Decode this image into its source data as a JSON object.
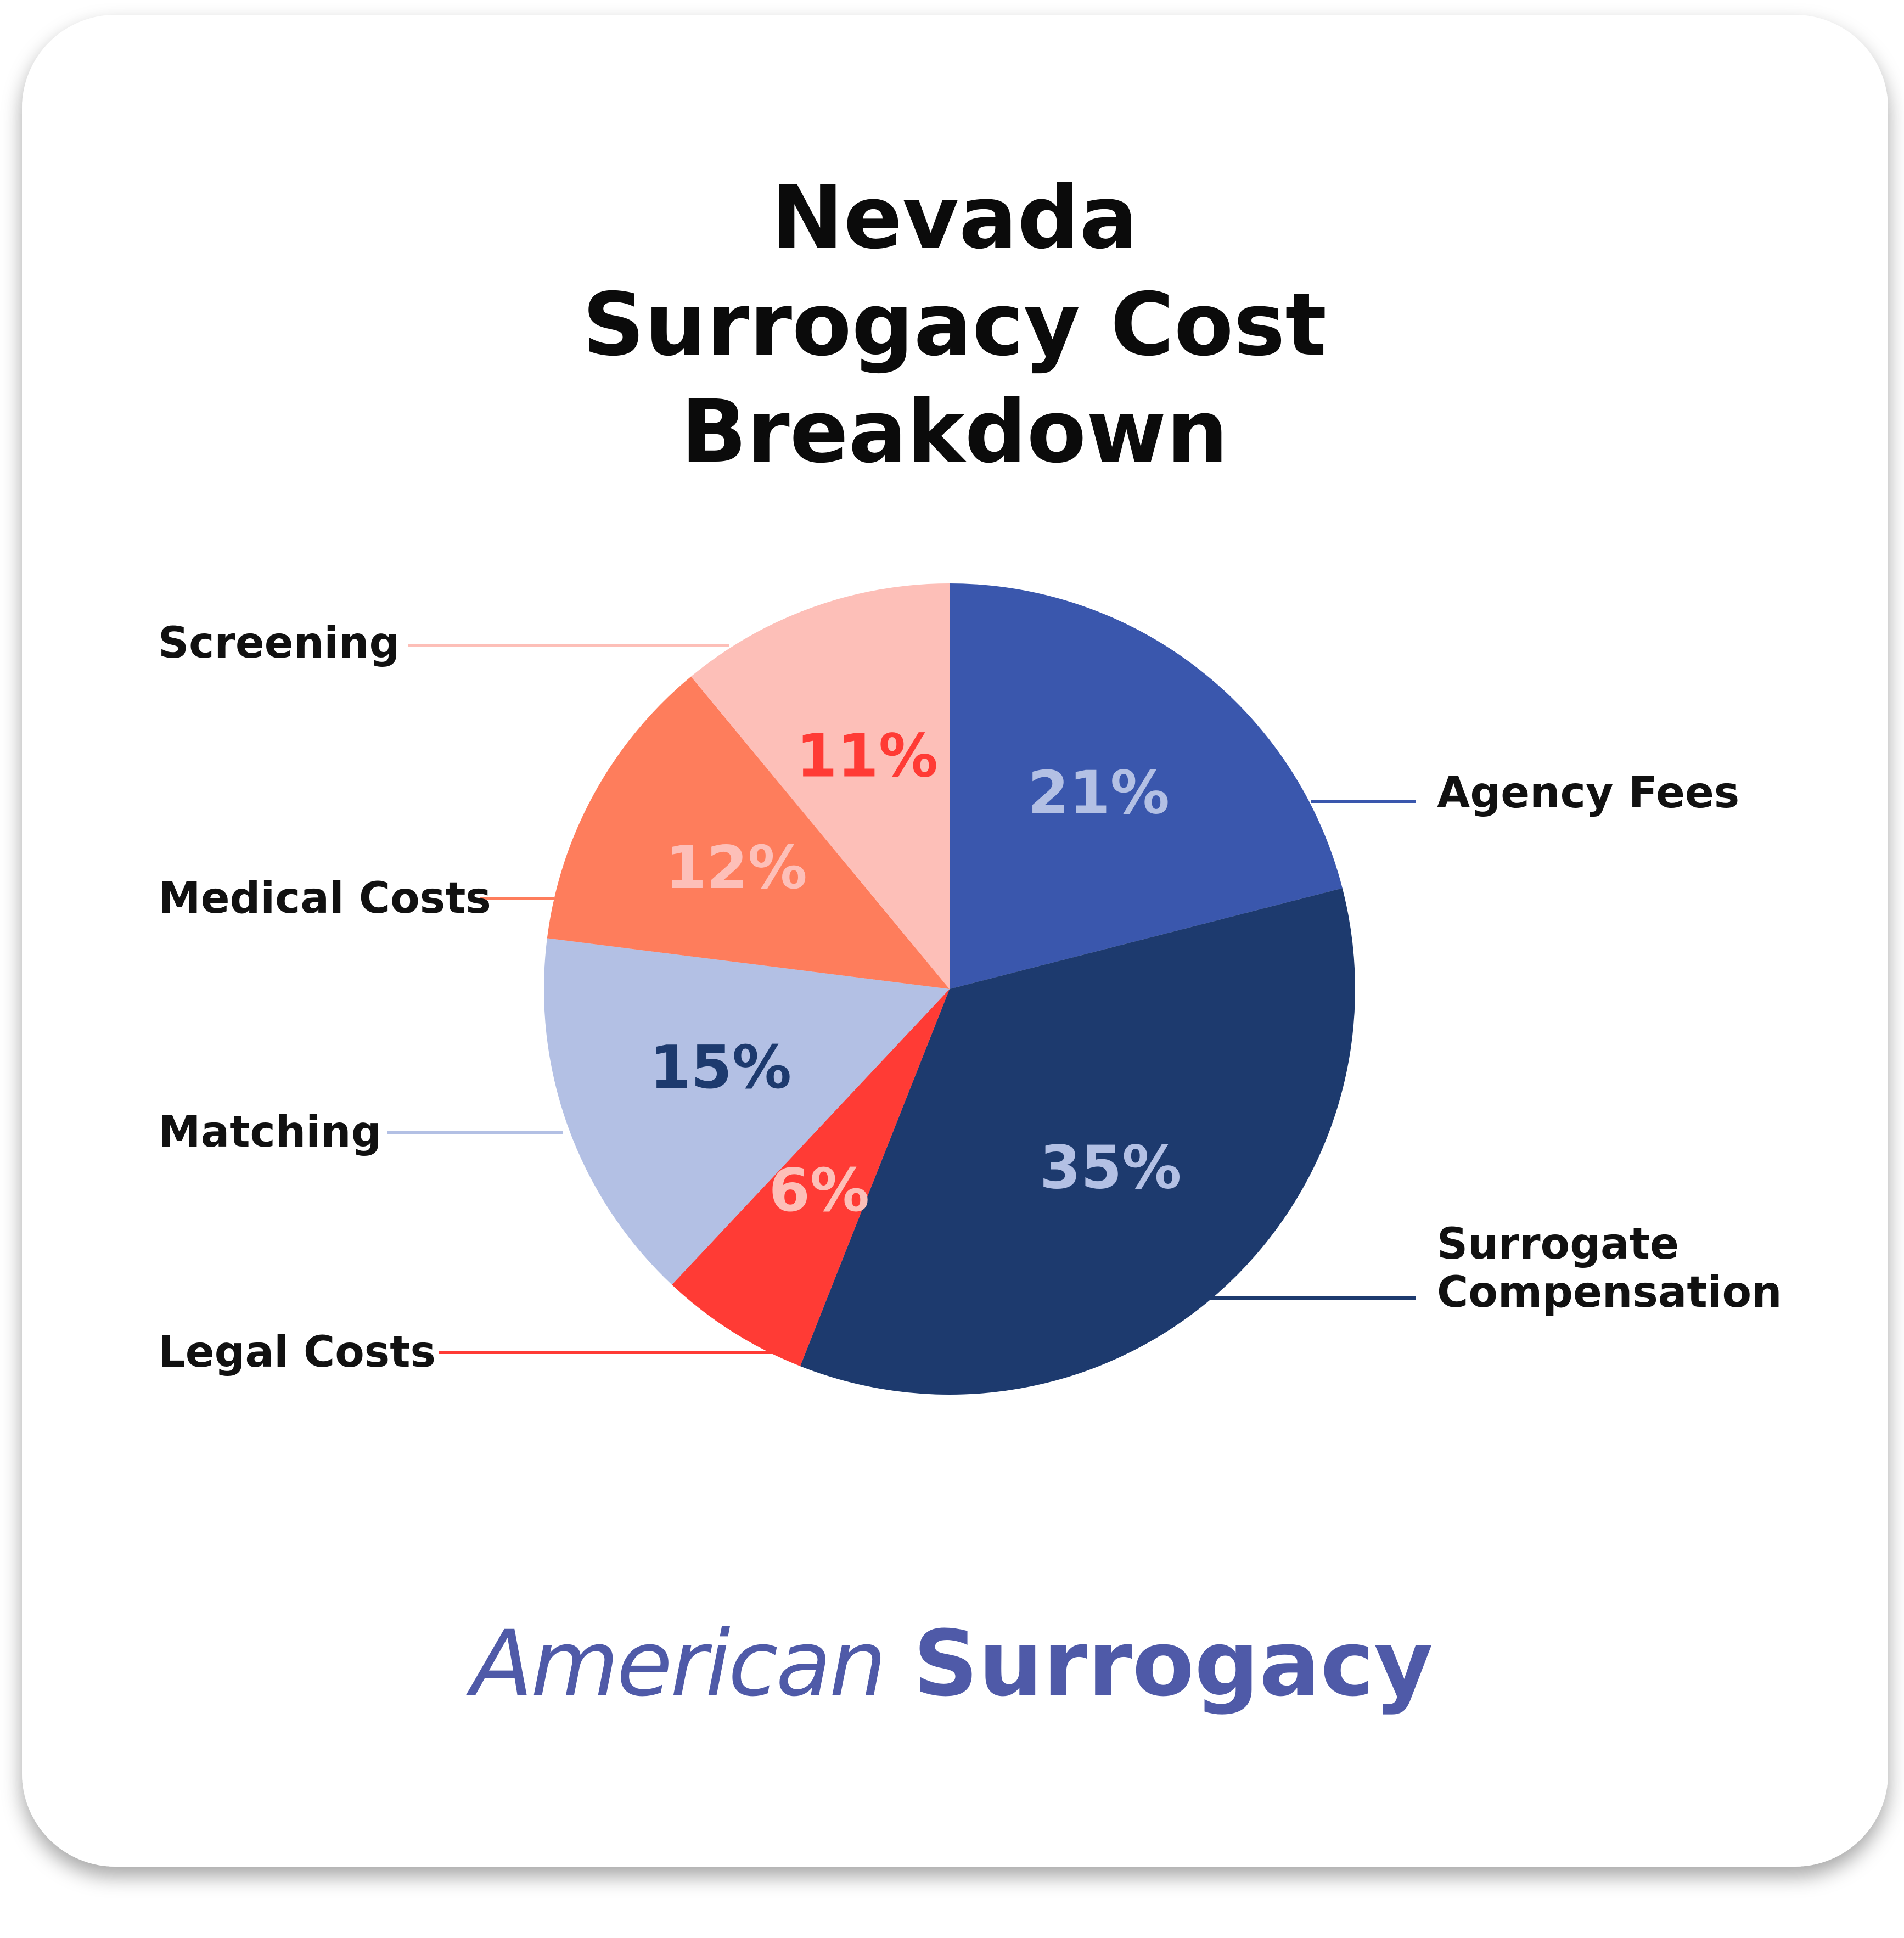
{
  "chart_data": {
    "type": "pie",
    "title": "Nevada Surrogacy Cost Breakdown",
    "categories": [
      "Agency Fees",
      "Surrogate Compensation",
      "Legal Costs",
      "Matching",
      "Medical Costs",
      "Screening"
    ],
    "values": [
      21,
      35,
      6,
      15,
      12,
      11
    ],
    "value_labels": [
      "21%",
      "35%",
      "6%",
      "15%",
      "12%",
      "11%"
    ],
    "colors": [
      "#3a57ad",
      "#1d3a6e",
      "#ff3b35",
      "#b3c0e4",
      "#fe7d5c",
      "#fdbfb8"
    ],
    "label_colors": [
      "#b3c0e4",
      "#b3c0e4",
      "#fdbfb8",
      "#1d3a6e",
      "#fdbfb8",
      "#ff3b35"
    ]
  },
  "logo": {
    "first": "American",
    "second": "Surrogacy"
  }
}
